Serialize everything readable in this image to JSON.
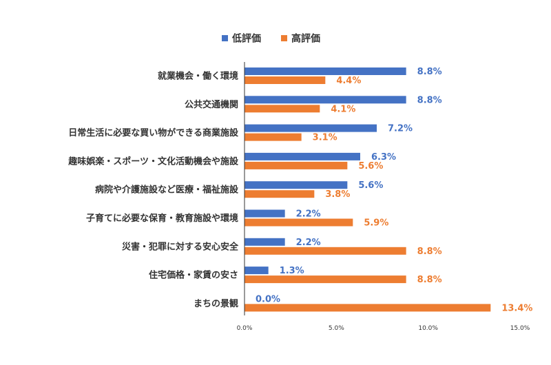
{
  "chart_data": {
    "type": "bar",
    "orientation": "horizontal",
    "categories": [
      "就業機会・働く環境",
      "公共交通機関",
      "日常生活に必要な買い物ができる商業施設",
      "趣味娯楽・スポーツ・文化活動機会や施設",
      "病院や介護施設など医療・福祉施設",
      "子育てに必要な保育・教育施設や環境",
      "災害・犯罪に対する安心安全",
      "住宅価格・家賃の安さ",
      "まちの景観"
    ],
    "series": [
      {
        "name": "低評価",
        "color": "#4472C4",
        "values": [
          8.8,
          8.8,
          7.2,
          6.3,
          5.6,
          2.2,
          2.2,
          1.3,
          0.0
        ],
        "labels": [
          "8.8%",
          "8.8%",
          "7.2%",
          "6.3%",
          "5.6%",
          "2.2%",
          "2.2%",
          "1.3%",
          "0.0%"
        ]
      },
      {
        "name": "高評価",
        "color": "#ED7D31",
        "values": [
          4.4,
          4.1,
          3.1,
          5.6,
          3.8,
          5.9,
          8.8,
          8.8,
          13.4
        ],
        "labels": [
          "4.4%",
          "4.1%",
          "3.1%",
          "5.6%",
          "3.8%",
          "5.9%",
          "8.8%",
          "8.8%",
          "13.4%"
        ]
      }
    ],
    "xlim": [
      0,
      15
    ],
    "xticks": [
      0,
      5,
      10,
      15
    ],
    "xtick_labels": [
      "0.0%",
      "5.0%",
      "10.0%",
      "15.0%"
    ],
    "title": "",
    "xlabel": "",
    "ylabel": "",
    "legend_position": "top",
    "grid": false
  }
}
